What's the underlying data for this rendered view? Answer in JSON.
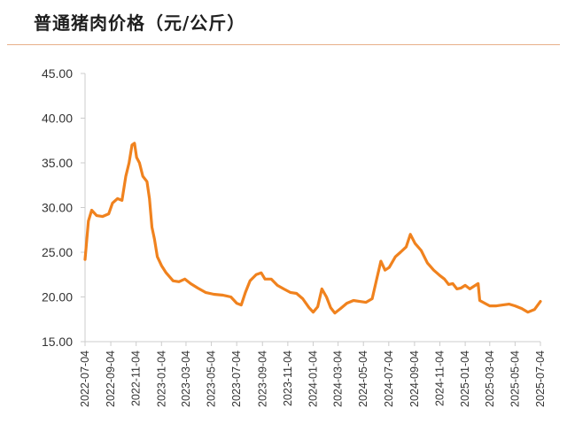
{
  "title": "普通猪肉价格（元/公斤）",
  "colors": {
    "line": "#f0821e",
    "axis": "#cccccc",
    "title_rule": "#e8b08a"
  },
  "chart_data": {
    "type": "line",
    "title": "普通猪肉价格（元/公斤）",
    "xlabel": "",
    "ylabel": "",
    "ylim": [
      15,
      45
    ],
    "yticks": [
      15,
      20,
      25,
      30,
      35,
      40,
      45
    ],
    "ytick_labels": [
      "15.00",
      "20.00",
      "25.00",
      "30.00",
      "35.00",
      "40.00",
      "45.00"
    ],
    "grid": false,
    "legend": "none",
    "xlim": [
      "2022-07-04",
      "2025-07-04"
    ],
    "xtick_labels": [
      "2022-07-04",
      "2022-09-04",
      "2022-11-04",
      "2023-01-04",
      "2023-03-04",
      "2023-05-04",
      "2023-07-04",
      "2023-09-04",
      "2023-11-04",
      "2024-01-04",
      "2024-03-04",
      "2024-05-04",
      "2024-07-04",
      "2024-09-04",
      "2024-11-04",
      "2025-01-04",
      "2025-03-04",
      "2025-05-04",
      "2025-07-04"
    ],
    "series": [
      {
        "values": [
          [
            "2022-07-04",
            24.2
          ],
          [
            "2022-07-12",
            28.5
          ],
          [
            "2022-07-20",
            29.7
          ],
          [
            "2022-08-01",
            29.1
          ],
          [
            "2022-08-15",
            29.0
          ],
          [
            "2022-08-30",
            29.3
          ],
          [
            "2022-09-08",
            30.5
          ],
          [
            "2022-09-20",
            31.0
          ],
          [
            "2022-10-01",
            30.8
          ],
          [
            "2022-10-10",
            33.5
          ],
          [
            "2022-10-18",
            35.0
          ],
          [
            "2022-10-25",
            37.0
          ],
          [
            "2022-10-31",
            37.2
          ],
          [
            "2022-11-05",
            35.6
          ],
          [
            "2022-11-12",
            35.0
          ],
          [
            "2022-11-20",
            33.5
          ],
          [
            "2022-11-30",
            32.9
          ],
          [
            "2022-12-06",
            31.0
          ],
          [
            "2022-12-12",
            27.8
          ],
          [
            "2022-12-18",
            26.5
          ],
          [
            "2022-12-25",
            24.5
          ],
          [
            "2023-01-04",
            23.5
          ],
          [
            "2023-01-15",
            22.7
          ],
          [
            "2023-02-01",
            21.8
          ],
          [
            "2023-02-15",
            21.7
          ],
          [
            "2023-03-01",
            22.0
          ],
          [
            "2023-03-15",
            21.5
          ],
          [
            "2023-04-01",
            21.0
          ],
          [
            "2023-04-20",
            20.5
          ],
          [
            "2023-05-10",
            20.3
          ],
          [
            "2023-06-01",
            20.2
          ],
          [
            "2023-06-20",
            20.0
          ],
          [
            "2023-07-04",
            19.3
          ],
          [
            "2023-07-15",
            19.1
          ],
          [
            "2023-07-25",
            20.5
          ],
          [
            "2023-08-05",
            21.8
          ],
          [
            "2023-08-20",
            22.5
          ],
          [
            "2023-09-01",
            22.7
          ],
          [
            "2023-09-10",
            22.0
          ],
          [
            "2023-09-25",
            22.0
          ],
          [
            "2023-10-10",
            21.3
          ],
          [
            "2023-10-25",
            20.9
          ],
          [
            "2023-11-10",
            20.5
          ],
          [
            "2023-11-25",
            20.4
          ],
          [
            "2023-12-10",
            19.8
          ],
          [
            "2023-12-25",
            18.8
          ],
          [
            "2024-01-04",
            18.3
          ],
          [
            "2024-01-15",
            18.9
          ],
          [
            "2024-01-25",
            20.9
          ],
          [
            "2024-02-05",
            20.0
          ],
          [
            "2024-02-15",
            18.8
          ],
          [
            "2024-02-25",
            18.2
          ],
          [
            "2024-03-10",
            18.7
          ],
          [
            "2024-03-25",
            19.3
          ],
          [
            "2024-04-10",
            19.6
          ],
          [
            "2024-04-25",
            19.5
          ],
          [
            "2024-05-10",
            19.4
          ],
          [
            "2024-05-25",
            19.8
          ],
          [
            "2024-06-05",
            22.0
          ],
          [
            "2024-06-15",
            24.0
          ],
          [
            "2024-06-25",
            23.0
          ],
          [
            "2024-07-05",
            23.3
          ],
          [
            "2024-07-20",
            24.5
          ],
          [
            "2024-08-01",
            25.0
          ],
          [
            "2024-08-15",
            25.6
          ],
          [
            "2024-08-25",
            27.0
          ],
          [
            "2024-09-05",
            26.0
          ],
          [
            "2024-09-20",
            25.2
          ],
          [
            "2024-10-05",
            23.8
          ],
          [
            "2024-10-20",
            23.0
          ],
          [
            "2024-11-04",
            22.4
          ],
          [
            "2024-11-15",
            22.0
          ],
          [
            "2024-11-25",
            21.4
          ],
          [
            "2024-12-05",
            21.5
          ],
          [
            "2024-12-15",
            20.9
          ],
          [
            "2024-12-25",
            21.0
          ],
          [
            "2025-01-04",
            21.3
          ],
          [
            "2025-01-15",
            20.9
          ],
          [
            "2025-01-25",
            21.2
          ],
          [
            "2025-02-04",
            21.5
          ],
          [
            "2025-02-08",
            19.6
          ],
          [
            "2025-02-20",
            19.3
          ],
          [
            "2025-03-04",
            19.0
          ],
          [
            "2025-03-20",
            19.0
          ],
          [
            "2025-04-04",
            19.1
          ],
          [
            "2025-04-20",
            19.2
          ],
          [
            "2025-05-04",
            19.0
          ],
          [
            "2025-05-20",
            18.7
          ],
          [
            "2025-06-04",
            18.3
          ],
          [
            "2025-06-20",
            18.6
          ],
          [
            "2025-07-04",
            19.5
          ]
        ]
      }
    ]
  }
}
